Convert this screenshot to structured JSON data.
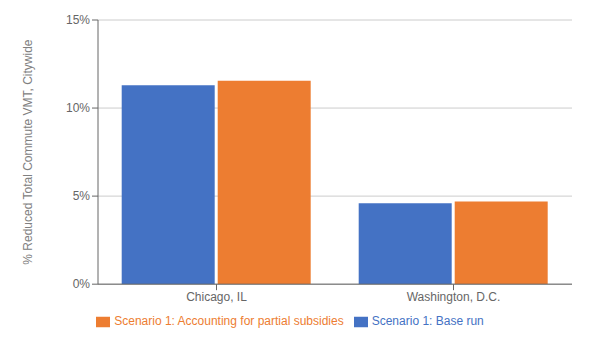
{
  "chart_data": {
    "type": "bar",
    "categories": [
      "Chicago, IL",
      "Washington, D.C."
    ],
    "series": [
      {
        "name": "Scenario 1: Base run",
        "color": "#4472C4",
        "values": [
          11.3,
          4.6
        ]
      },
      {
        "name": "Scenario 1: Accounting for partial subsidies",
        "color": "#ED7D31",
        "values": [
          11.55,
          4.7
        ]
      }
    ],
    "ylabel": "% Reduced Total Commute VMT, Citywide",
    "ylim": [
      0,
      15
    ],
    "yticks": [
      {
        "value": 0,
        "label": "0%"
      },
      {
        "value": 5,
        "label": "5%"
      },
      {
        "value": 10,
        "label": "10%"
      },
      {
        "value": 15,
        "label": "15%"
      }
    ],
    "grid": true,
    "legend": "bottom"
  }
}
